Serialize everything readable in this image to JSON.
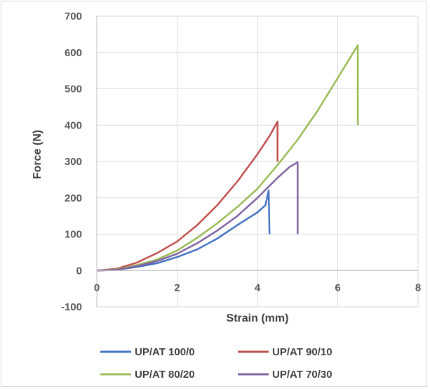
{
  "chart_data": {
    "type": "line",
    "xlabel": "Strain (mm)",
    "ylabel": "Force (N)",
    "xlim": [
      0,
      8
    ],
    "ylim": [
      -100,
      700
    ],
    "x_ticks": [
      "0",
      "2",
      "4",
      "6",
      "8"
    ],
    "y_ticks": [
      "-100",
      "0",
      "100",
      "200",
      "300",
      "400",
      "500",
      "600",
      "700"
    ],
    "grid": true,
    "legend_position": "bottom",
    "series": [
      {
        "name": "UP/AT 100/0",
        "color": "#4472c4",
        "points": [
          [
            0,
            0
          ],
          [
            0.5,
            2
          ],
          [
            1,
            10
          ],
          [
            1.5,
            20
          ],
          [
            2,
            37
          ],
          [
            2.5,
            58
          ],
          [
            3,
            88
          ],
          [
            3.5,
            125
          ],
          [
            4,
            160
          ],
          [
            4.2,
            180
          ],
          [
            4.28,
            220
          ],
          [
            4.3,
            100
          ]
        ]
      },
      {
        "name": "UP/AT 90/10",
        "color": "#c0504d",
        "points": [
          [
            0,
            0
          ],
          [
            0.5,
            5
          ],
          [
            1,
            22
          ],
          [
            1.5,
            48
          ],
          [
            2,
            80
          ],
          [
            2.5,
            125
          ],
          [
            3,
            180
          ],
          [
            3.5,
            245
          ],
          [
            4,
            320
          ],
          [
            4.3,
            370
          ],
          [
            4.5,
            410
          ],
          [
            4.5,
            300
          ]
        ]
      },
      {
        "name": "UP/AT 80/20",
        "color": "#9bbb59",
        "points": [
          [
            0,
            0
          ],
          [
            0.5,
            3
          ],
          [
            1,
            15
          ],
          [
            1.5,
            30
          ],
          [
            2,
            55
          ],
          [
            2.5,
            90
          ],
          [
            3,
            130
          ],
          [
            3.5,
            175
          ],
          [
            4,
            225
          ],
          [
            4.5,
            290
          ],
          [
            5,
            360
          ],
          [
            5.5,
            440
          ],
          [
            6,
            530
          ],
          [
            6.5,
            620
          ],
          [
            6.5,
            400
          ]
        ]
      },
      {
        "name": "UP/AT 70/30",
        "color": "#8064a2",
        "points": [
          [
            0,
            0
          ],
          [
            0.5,
            2
          ],
          [
            1,
            12
          ],
          [
            1.5,
            26
          ],
          [
            2,
            46
          ],
          [
            2.5,
            75
          ],
          [
            3,
            110
          ],
          [
            3.5,
            150
          ],
          [
            4,
            200
          ],
          [
            4.5,
            255
          ],
          [
            4.8,
            285
          ],
          [
            5,
            298
          ],
          [
            5,
            100
          ]
        ]
      }
    ]
  }
}
